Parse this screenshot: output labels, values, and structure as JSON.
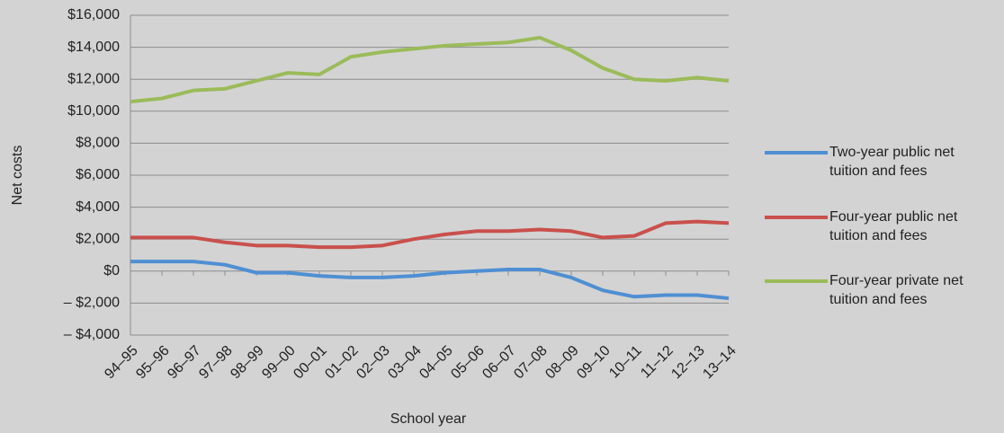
{
  "chart_data": {
    "type": "line",
    "x_label": "School year",
    "y_label": "Net costs",
    "categories": [
      "94–95",
      "95–96",
      "96–97",
      "97–98",
      "98–99",
      "99–00",
      "00–01",
      "01–02",
      "02–03",
      "03–04",
      "04–05",
      "05–06",
      "06–07",
      "07–08",
      "08–09",
      "09–10",
      "10–11",
      "11–12",
      "12–13",
      "13–14"
    ],
    "series": [
      {
        "name": "Two-year public net tuition and fees",
        "color": "#4f8fd3",
        "values": [
          600,
          600,
          600,
          400,
          -100,
          -100,
          -300,
          -400,
          -400,
          -300,
          -100,
          0,
          100,
          100,
          -400,
          -1200,
          -1600,
          -1500,
          -1500,
          -1700
        ]
      },
      {
        "name": "Four-year public net tuition and fees",
        "color": "#c9504c",
        "values": [
          2100,
          2100,
          2100,
          1800,
          1600,
          1600,
          1500,
          1500,
          1600,
          2000,
          2300,
          2500,
          2500,
          2600,
          2500,
          2100,
          2200,
          3000,
          3100,
          3000
        ]
      },
      {
        "name": "Four-year private net tuition and fees",
        "color": "#9bbb59",
        "values": [
          10600,
          10800,
          11300,
          11400,
          11900,
          12400,
          12300,
          13400,
          13700,
          13900,
          14100,
          14200,
          14300,
          14600,
          13800,
          12700,
          12000,
          11900,
          12100,
          11900
        ]
      }
    ],
    "ylim": [
      -4000,
      16000
    ],
    "yticks": [
      {
        "value": -4000,
        "label": "– $4,000"
      },
      {
        "value": -2000,
        "label": "– $2,000"
      },
      {
        "value": 0,
        "label": "$0"
      },
      {
        "value": 2000,
        "label": "$2,000"
      },
      {
        "value": 4000,
        "label": "$4,000"
      },
      {
        "value": 6000,
        "label": "$6,000"
      },
      {
        "value": 8000,
        "label": "$8,000"
      },
      {
        "value": 10000,
        "label": "$10,000"
      },
      {
        "value": 12000,
        "label": "$12,000"
      },
      {
        "value": 14000,
        "label": "$14,000"
      },
      {
        "value": 16000,
        "label": "$16,000"
      }
    ],
    "grid": true,
    "legend": "right"
  }
}
